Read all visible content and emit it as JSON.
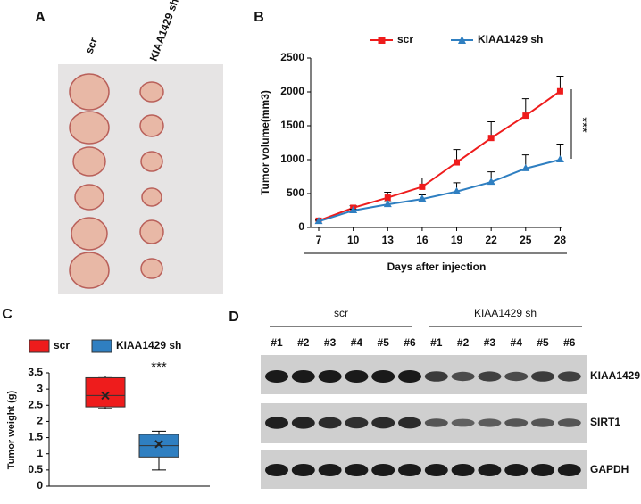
{
  "panel_labels": [
    "A",
    "B",
    "C",
    "D"
  ],
  "photo": {
    "columns": [
      "scr",
      "KIAA1429 sh"
    ]
  },
  "blot": {
    "groups": [
      "scr",
      "KIAA1429 sh"
    ],
    "lanes": [
      "#1",
      "#2",
      "#3",
      "#4",
      "#5",
      "#6",
      "#1",
      "#2",
      "#3",
      "#4",
      "#5",
      "#6"
    ],
    "bands": [
      "KIAA1429",
      "SIRT1",
      "GAPDH"
    ]
  },
  "chart_data": [
    {
      "type": "line",
      "x": [
        7,
        10,
        13,
        16,
        19,
        22,
        25,
        28
      ],
      "xlim": [
        6.3,
        28.2
      ],
      "xticks": [
        7,
        10,
        13,
        16,
        19,
        22,
        25,
        28
      ],
      "ylim": [
        0,
        2500
      ],
      "yticks": [
        0,
        500,
        1000,
        1500,
        2000,
        2500
      ],
      "xlabel": "Days after injection",
      "ylabel": "Tumor volume(mm3)",
      "annotation": "***",
      "series": [
        {
          "name": "scr",
          "color": "#ee1c1c",
          "marker": "square",
          "values": [
            100,
            290,
            440,
            600,
            960,
            1320,
            1650,
            2010
          ],
          "errors": [
            20,
            30,
            80,
            130,
            190,
            240,
            250,
            220
          ]
        },
        {
          "name": "KIAA1429 sh",
          "color": "#2f7fc1",
          "marker": "triangle",
          "values": [
            90,
            250,
            340,
            420,
            530,
            670,
            870,
            1000
          ],
          "errors": [
            15,
            20,
            40,
            60,
            130,
            150,
            200,
            230
          ]
        }
      ]
    },
    {
      "type": "box",
      "ylim": [
        0,
        3.5
      ],
      "yticks": [
        0,
        0.5,
        1,
        1.5,
        2,
        2.5,
        3,
        3.5
      ],
      "ylabel": "Tumor weight (g)",
      "annotation": "***",
      "series": [
        {
          "name": "scr",
          "color": "#ee1c1c",
          "min": 2.4,
          "q1": 2.45,
          "median": 2.8,
          "q3": 3.35,
          "max": 3.4,
          "mean": 2.8
        },
        {
          "name": "KIAA1429 sh",
          "color": "#2f7fc1",
          "min": 0.5,
          "q1": 0.9,
          "median": 1.25,
          "q3": 1.6,
          "max": 1.7,
          "mean": 1.3
        }
      ]
    }
  ]
}
